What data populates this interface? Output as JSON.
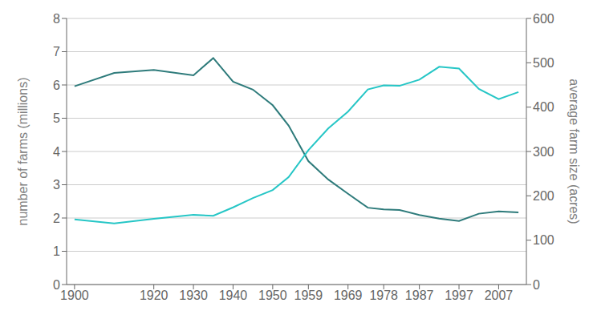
{
  "chart_data": {
    "type": "line",
    "x": [
      1900,
      1910,
      1920,
      1930,
      1935,
      1940,
      1945,
      1950,
      1954,
      1959,
      1964,
      1969,
      1974,
      1978,
      1982,
      1987,
      1992,
      1997,
      2002,
      2007,
      2012
    ],
    "series": [
      {
        "color": "#2E7B7B",
        "values": [
          5.96,
          6.36,
          6.45,
          6.29,
          6.81,
          6.1,
          5.86,
          5.39,
          4.78,
          3.71,
          3.16,
          2.73,
          2.31,
          2.26,
          2.24,
          2.09,
          1.98,
          1.91,
          2.13,
          2.2,
          2.17
        ]
      },
      {
        "color": "#26C6C6",
        "axis": "y2",
        "values": [
          147,
          138,
          148,
          157,
          155,
          174,
          195,
          213,
          242,
          303,
          352,
          390,
          440,
          449,
          448,
          462,
          491,
          487,
          441,
          418,
          434
        ]
      }
    ],
    "xlim": [
      1898,
      2014
    ],
    "xticks": [
      1900,
      1920,
      1930,
      1940,
      1950,
      1959,
      1969,
      1978,
      1987,
      1997,
      2007
    ],
    "ylim": [
      0,
      8
    ],
    "yticks": [
      0,
      1,
      2,
      3,
      4,
      5,
      6,
      7,
      8
    ],
    "y2lim": [
      0,
      600
    ],
    "y2ticks": [
      0,
      100,
      200,
      300,
      400,
      500,
      600
    ],
    "y_label": "number of farms (millions)",
    "y2_label": "average farm size (acres)",
    "grid": true
  }
}
